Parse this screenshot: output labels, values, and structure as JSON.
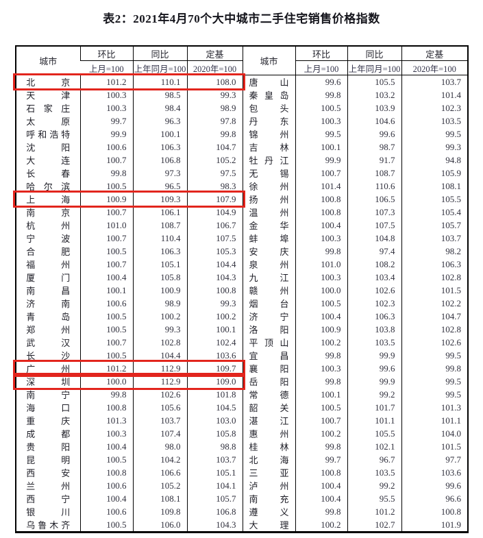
{
  "title": "表2：2021年4月70个大中城市二手住宅销售价格指数",
  "header": {
    "city": "城市",
    "cols": [
      {
        "top": "环比",
        "sub": "上月=100"
      },
      {
        "top": "同比",
        "sub": "上年同月=100"
      },
      {
        "top": "定基",
        "sub": "2020年=100"
      }
    ]
  },
  "colors": {
    "text": "#30303d",
    "border": "#000000",
    "highlight": "#e2251d",
    "background": "#ffffff"
  },
  "chart_data": {
    "type": "table",
    "title": "表2：2021年4月70个大中城市二手住宅销售价格指数",
    "columns": [
      "城市",
      "环比(上月=100)",
      "同比(上年同月=100)",
      "定基(2020年=100)"
    ]
  },
  "left_rows": [
    {
      "city": "北京",
      "mom": "101.2",
      "yoy": "110.1",
      "base": "108.0",
      "highlighted": true
    },
    {
      "city": "天津",
      "mom": "100.3",
      "yoy": "98.5",
      "base": "99.3",
      "highlighted": false
    },
    {
      "city": "石家庄",
      "mom": "100.3",
      "yoy": "98.4",
      "base": "98.9",
      "highlighted": false
    },
    {
      "city": "太原",
      "mom": "99.7",
      "yoy": "96.3",
      "base": "97.8",
      "highlighted": false
    },
    {
      "city": "呼和浩特",
      "mom": "99.9",
      "yoy": "100.1",
      "base": "99.8",
      "highlighted": false
    },
    {
      "city": "沈阳",
      "mom": "100.6",
      "yoy": "106.3",
      "base": "104.7",
      "highlighted": false
    },
    {
      "city": "大连",
      "mom": "100.7",
      "yoy": "106.8",
      "base": "105.2",
      "highlighted": false
    },
    {
      "city": "长春",
      "mom": "99.8",
      "yoy": "97.3",
      "base": "97.5",
      "highlighted": false
    },
    {
      "city": "哈尔滨",
      "mom": "100.5",
      "yoy": "96.5",
      "base": "98.3",
      "highlighted": false
    },
    {
      "city": "上海",
      "mom": "100.9",
      "yoy": "109.3",
      "base": "107.9",
      "highlighted": true
    },
    {
      "city": "南京",
      "mom": "100.7",
      "yoy": "106.1",
      "base": "104.9",
      "highlighted": false
    },
    {
      "city": "杭州",
      "mom": "101.0",
      "yoy": "108.7",
      "base": "106.7",
      "highlighted": false
    },
    {
      "city": "宁波",
      "mom": "100.7",
      "yoy": "110.4",
      "base": "107.5",
      "highlighted": false
    },
    {
      "city": "合肥",
      "mom": "100.5",
      "yoy": "106.3",
      "base": "105.3",
      "highlighted": false
    },
    {
      "city": "福州",
      "mom": "100.7",
      "yoy": "105.1",
      "base": "104.4",
      "highlighted": false
    },
    {
      "city": "厦门",
      "mom": "100.4",
      "yoy": "105.8",
      "base": "104.3",
      "highlighted": false
    },
    {
      "city": "南昌",
      "mom": "100.1",
      "yoy": "100.9",
      "base": "100.8",
      "highlighted": false
    },
    {
      "city": "济南",
      "mom": "100.6",
      "yoy": "98.9",
      "base": "99.3",
      "highlighted": false
    },
    {
      "city": "青岛",
      "mom": "100.5",
      "yoy": "100.2",
      "base": "100.2",
      "highlighted": false
    },
    {
      "city": "郑州",
      "mom": "100.5",
      "yoy": "99.3",
      "base": "100.1",
      "highlighted": false
    },
    {
      "city": "武汉",
      "mom": "100.7",
      "yoy": "102.8",
      "base": "102.4",
      "highlighted": false
    },
    {
      "city": "长沙",
      "mom": "100.5",
      "yoy": "104.4",
      "base": "103.6",
      "highlighted": false
    },
    {
      "city": "广州",
      "mom": "101.2",
      "yoy": "112.9",
      "base": "109.7",
      "highlighted": true
    },
    {
      "city": "深圳",
      "mom": "100.0",
      "yoy": "112.9",
      "base": "109.0",
      "highlighted": true
    },
    {
      "city": "南宁",
      "mom": "99.8",
      "yoy": "102.6",
      "base": "101.8",
      "highlighted": false
    },
    {
      "city": "海口",
      "mom": "100.8",
      "yoy": "105.6",
      "base": "104.5",
      "highlighted": false
    },
    {
      "city": "重庆",
      "mom": "101.3",
      "yoy": "103.7",
      "base": "103.0",
      "highlighted": false
    },
    {
      "city": "成都",
      "mom": "100.3",
      "yoy": "107.4",
      "base": "105.8",
      "highlighted": false
    },
    {
      "city": "贵阳",
      "mom": "100.4",
      "yoy": "98.0",
      "base": "98.8",
      "highlighted": false
    },
    {
      "city": "昆明",
      "mom": "100.5",
      "yoy": "104.2",
      "base": "103.7",
      "highlighted": false
    },
    {
      "city": "西安",
      "mom": "100.8",
      "yoy": "106.6",
      "base": "105.1",
      "highlighted": false
    },
    {
      "city": "兰州",
      "mom": "100.6",
      "yoy": "105.2",
      "base": "104.1",
      "highlighted": false
    },
    {
      "city": "西宁",
      "mom": "100.4",
      "yoy": "108.1",
      "base": "105.7",
      "highlighted": false
    },
    {
      "city": "银川",
      "mom": "100.6",
      "yoy": "109.8",
      "base": "106.8",
      "highlighted": false
    },
    {
      "city": "乌鲁木齐",
      "mom": "100.5",
      "yoy": "106.0",
      "base": "104.3",
      "highlighted": false
    }
  ],
  "right_rows": [
    {
      "city": "唐山",
      "mom": "99.6",
      "yoy": "105.5",
      "base": "103.7"
    },
    {
      "city": "秦皇岛",
      "mom": "99.8",
      "yoy": "103.2",
      "base": "101.4"
    },
    {
      "city": "包头",
      "mom": "100.5",
      "yoy": "103.9",
      "base": "102.3"
    },
    {
      "city": "丹东",
      "mom": "100.3",
      "yoy": "104.6",
      "base": "103.5"
    },
    {
      "city": "锦州",
      "mom": "99.5",
      "yoy": "99.6",
      "base": "99.5"
    },
    {
      "city": "吉林",
      "mom": "100.1",
      "yoy": "98.7",
      "base": "99.3"
    },
    {
      "city": "牡丹江",
      "mom": "99.9",
      "yoy": "91.7",
      "base": "94.8"
    },
    {
      "city": "无锡",
      "mom": "100.7",
      "yoy": "108.7",
      "base": "105.9"
    },
    {
      "city": "徐州",
      "mom": "101.4",
      "yoy": "110.6",
      "base": "108.1"
    },
    {
      "city": "扬州",
      "mom": "100.8",
      "yoy": "106.5",
      "base": "105.5"
    },
    {
      "city": "温州",
      "mom": "100.8",
      "yoy": "107.3",
      "base": "105.4"
    },
    {
      "city": "金华",
      "mom": "100.4",
      "yoy": "107.5",
      "base": "105.7"
    },
    {
      "city": "蚌埠",
      "mom": "100.3",
      "yoy": "104.8",
      "base": "103.7"
    },
    {
      "city": "安庆",
      "mom": "99.8",
      "yoy": "97.4",
      "base": "98.2"
    },
    {
      "city": "泉州",
      "mom": "101.0",
      "yoy": "108.2",
      "base": "106.3"
    },
    {
      "city": "九江",
      "mom": "100.3",
      "yoy": "103.4",
      "base": "102.8"
    },
    {
      "city": "赣州",
      "mom": "100.0",
      "yoy": "102.6",
      "base": "101.5"
    },
    {
      "city": "烟台",
      "mom": "100.5",
      "yoy": "102.3",
      "base": "102.2"
    },
    {
      "city": "济宁",
      "mom": "100.4",
      "yoy": "106.3",
      "base": "104.7"
    },
    {
      "city": "洛阳",
      "mom": "100.9",
      "yoy": "103.8",
      "base": "102.8"
    },
    {
      "city": "平顶山",
      "mom": "100.2",
      "yoy": "103.5",
      "base": "102.6"
    },
    {
      "city": "宜昌",
      "mom": "99.8",
      "yoy": "99.9",
      "base": "99.5"
    },
    {
      "city": "襄阳",
      "mom": "100.3",
      "yoy": "99.6",
      "base": "99.8"
    },
    {
      "city": "岳阳",
      "mom": "99.8",
      "yoy": "99.9",
      "base": "99.5"
    },
    {
      "city": "常德",
      "mom": "100.1",
      "yoy": "99.2",
      "base": "99.5"
    },
    {
      "city": "韶关",
      "mom": "100.5",
      "yoy": "101.7",
      "base": "101.3"
    },
    {
      "city": "湛江",
      "mom": "100.7",
      "yoy": "101.1",
      "base": "101.1"
    },
    {
      "city": "惠州",
      "mom": "100.2",
      "yoy": "105.5",
      "base": "104.0"
    },
    {
      "city": "桂林",
      "mom": "99.8",
      "yoy": "102.1",
      "base": "101.5"
    },
    {
      "city": "北海",
      "mom": "99.7",
      "yoy": "96.7",
      "base": "97.7"
    },
    {
      "city": "三亚",
      "mom": "100.8",
      "yoy": "103.5",
      "base": "103.6"
    },
    {
      "city": "泸州",
      "mom": "100.4",
      "yoy": "99.2",
      "base": "99.6"
    },
    {
      "city": "南充",
      "mom": "100.4",
      "yoy": "95.5",
      "base": "96.6"
    },
    {
      "city": "遵义",
      "mom": "99.8",
      "yoy": "101.2",
      "base": "100.8"
    },
    {
      "city": "大理",
      "mom": "100.2",
      "yoy": "102.7",
      "base": "101.9"
    }
  ]
}
